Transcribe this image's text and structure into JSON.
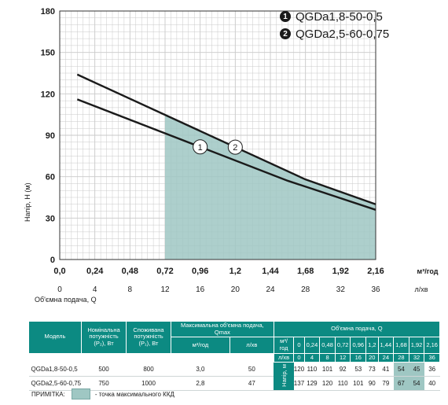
{
  "chart_data": {
    "type": "line",
    "ylabel": "Напір, Н (м)",
    "xlabel": "Об'ємна подача, Q",
    "x_unit_top": "м³/год",
    "x_unit_bottom": "л/хв",
    "xlim": [
      0,
      2.16
    ],
    "ylim": [
      0,
      180
    ],
    "y_ticks": [
      "0",
      "30",
      "60",
      "90",
      "120",
      "150",
      "180"
    ],
    "y_tick_values": [
      0,
      30,
      60,
      90,
      120,
      150,
      180
    ],
    "x_ticks_top": [
      "0,0",
      "0,24",
      "0,48",
      "0,72",
      "0,96",
      "1,2",
      "1,44",
      "1,68",
      "1,92",
      "2,16"
    ],
    "x_ticks_bottom": [
      "0",
      "4",
      "8",
      "12",
      "16",
      "20",
      "24",
      "28",
      "32",
      "36"
    ],
    "x_tick_values": [
      0,
      0.24,
      0.48,
      0.72,
      0.96,
      1.2,
      1.44,
      1.68,
      1.92,
      2.16
    ],
    "grid": true,
    "series": [
      {
        "name": "QGDa1,8-50-0,5",
        "marker": "1",
        "x": [
          0.12,
          1.56,
          2.16
        ],
        "y": [
          116,
          57,
          36
        ]
      },
      {
        "name": "QGDa2,5-60-0,75",
        "marker": "2",
        "x": [
          0.12,
          1.68,
          2.16
        ],
        "y": [
          134,
          58,
          40
        ]
      }
    ],
    "max_efficiency_zone": {
      "x_from": 0.72,
      "x_to": 2.16
    }
  },
  "legend": [
    {
      "num": "1",
      "name": "QGDa1,8-50-0,5"
    },
    {
      "num": "2",
      "name": "QGDa2,5-60-0,75"
    }
  ],
  "table": {
    "headers": {
      "model": "Модель",
      "nominal_power": "Номінальна потужність (P₂), Вт",
      "consumed_power": "Споживана потужність (P₁), Вт",
      "max_flow": "Максимальна об'ємна подача, Qmax",
      "flow": "Об'ємна подача, Q",
      "m3h": "м³/год",
      "lmin": "л/хв",
      "head": "Напір, м"
    },
    "flow_m3h": [
      "0",
      "0,24",
      "0,48",
      "0,72",
      "0,96",
      "1,2",
      "1,44",
      "1,68",
      "1,92",
      "2,16"
    ],
    "flow_lmin": [
      "0",
      "4",
      "8",
      "12",
      "16",
      "20",
      "24",
      "28",
      "32",
      "36"
    ],
    "rows": [
      {
        "model": "QGDa1,8-50-0,5",
        "p2": "500",
        "p1": "800",
        "qmax_m3h": "3,0",
        "qmax_lmin": "50",
        "heads": [
          "120",
          "110",
          "101",
          "92",
          "53",
          "73",
          "41",
          "54",
          "45",
          "36"
        ]
      },
      {
        "model": "QGDa2,5-60-0,75",
        "p2": "750",
        "p1": "1000",
        "qmax_m3h": "2,8",
        "qmax_lmin": "47",
        "heads": [
          "137",
          "129",
          "120",
          "110",
          "101",
          "90",
          "79",
          "67",
          "54",
          "40"
        ]
      }
    ]
  },
  "note": {
    "label": "ПРИМІТКА:",
    "text": "- точка максимального ККД"
  },
  "colors": {
    "zone_fill": "#9fc7c3",
    "table_header": "#0c8a82",
    "line": "#1a1a1a"
  }
}
